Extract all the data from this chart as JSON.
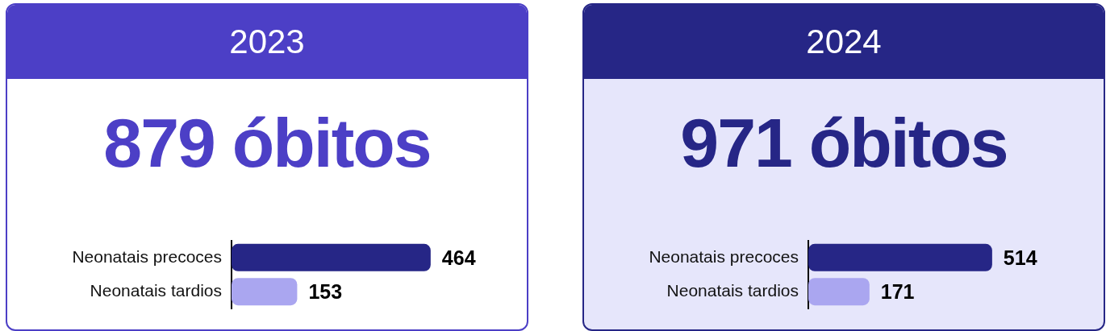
{
  "chart_data": [
    {
      "type": "bar",
      "orientation": "horizontal",
      "title": "2023",
      "subtitle": "879 óbitos",
      "categories": [
        "Neonatais precoces",
        "Neonatais tardios"
      ],
      "values": [
        464,
        153
      ],
      "colors": [
        "#262686",
        "#aaa6f0"
      ],
      "data_labels": true
    },
    {
      "type": "bar",
      "orientation": "horizontal",
      "title": "2024",
      "subtitle": "971 óbitos",
      "categories": [
        "Neonatais precoces",
        "Neonatais tardios"
      ],
      "values": [
        514,
        171
      ],
      "colors": [
        "#262686",
        "#aaa6f0"
      ],
      "data_labels": true
    }
  ]
}
